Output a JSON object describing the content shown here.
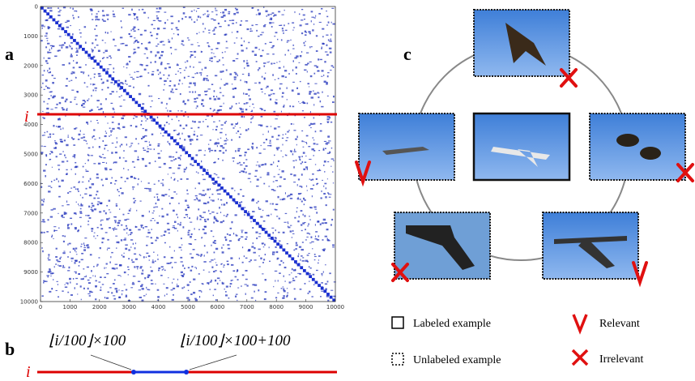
{
  "panel_a": {
    "label": "a",
    "row_label": "i",
    "lim": [
      0,
      10000
    ],
    "xticks": [
      0,
      1000,
      2000,
      3000,
      4000,
      5000,
      6000,
      7000,
      8000,
      9000,
      10000
    ],
    "yticks": [
      0,
      1000,
      2000,
      3000,
      4000,
      5000,
      6000,
      7000,
      8000,
      9000,
      10000
    ]
  },
  "panel_b": {
    "label": "b",
    "row_label": "i",
    "left_formula": "⌊i/100⌋×100",
    "right_formula": "⌊i/100⌋×100+100"
  },
  "panel_c": {
    "label": "c",
    "legend": [
      "Labeled example",
      "Unlabeled example",
      "Relevant",
      "Irrelevant"
    ]
  }
}
